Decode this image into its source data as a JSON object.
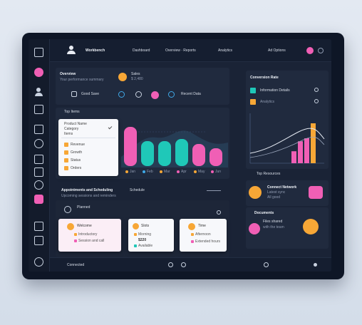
{
  "colors": {
    "pink": "#f05fb5",
    "teal": "#1fc8b8",
    "orange": "#f7a736",
    "panel": "#202a3e",
    "screen": "#1a2336"
  },
  "sidebar": {
    "icons": [
      "monitor-icon",
      "pink-dot-icon",
      "user-icon",
      "calendar-icon",
      "grid-icon",
      "link-icon",
      "document-icon",
      "chat-icon",
      "lock-icon",
      "pink-badge-icon",
      "layers-icon",
      "folder-icon",
      "settings-icon"
    ]
  },
  "header": {
    "title": "Workbench",
    "nav": [
      "Dashboard",
      "Overview · Reports",
      "Analytics"
    ],
    "filter": "Ad Options"
  },
  "main_panel": {
    "title": "Overview",
    "subtitle": "Your performance summary",
    "metric_label": "Sales",
    "metric_sub": "$ 2,480",
    "button_label": "Good Save",
    "secondary_label": "Recent Data"
  },
  "bar_chart": {
    "legend_title": "Top Items",
    "list_items": [
      "Product Name",
      "Category",
      "Items",
      "Revenue",
      "Growth",
      "Status",
      "Orders"
    ],
    "tick_labels": [
      "Jan",
      "Feb",
      "Mar",
      "Apr",
      "May",
      "Jun"
    ]
  },
  "chart_data": {
    "type": "bar",
    "categories": [
      "Jan",
      "Feb",
      "Mar",
      "Apr",
      "May",
      "Jun"
    ],
    "values": [
      55,
      35,
      35,
      38,
      31,
      25
    ],
    "ylim": [
      0,
      60
    ]
  },
  "right_panel": {
    "title": "Conversion Rate",
    "items": [
      "Information Details",
      "Analytics"
    ],
    "footer": "Top Resources"
  },
  "line_chart": {
    "type": "line+bar",
    "bars": [
      12,
      22,
      25,
      40
    ],
    "ylim": [
      0,
      50
    ]
  },
  "lower_left": {
    "title": "Appointments and Scheduling",
    "subtitle": "Upcoming sessions and reminders",
    "second_title": "Schedule",
    "panel_title": "Planned",
    "cards": [
      {
        "title": "Welcome",
        "line1": "Introductory",
        "line2": "Session and call"
      },
      {
        "title": "Slots",
        "line1": "Morning",
        "line2": "Available",
        "value": "$220"
      },
      {
        "title": "Time",
        "line1": "Afternoon",
        "line2": "Extended hours"
      }
    ]
  },
  "lower_right": {
    "card1_title": "Connect Network",
    "card1_line1": "Latest sync",
    "card1_line2": "All good",
    "card2_title": "Documents",
    "card2_line1": "Files shared",
    "card2_line2": "with the team"
  },
  "footer": {
    "status": "Connected",
    "controls": [
      "play",
      "pause",
      "next"
    ]
  }
}
